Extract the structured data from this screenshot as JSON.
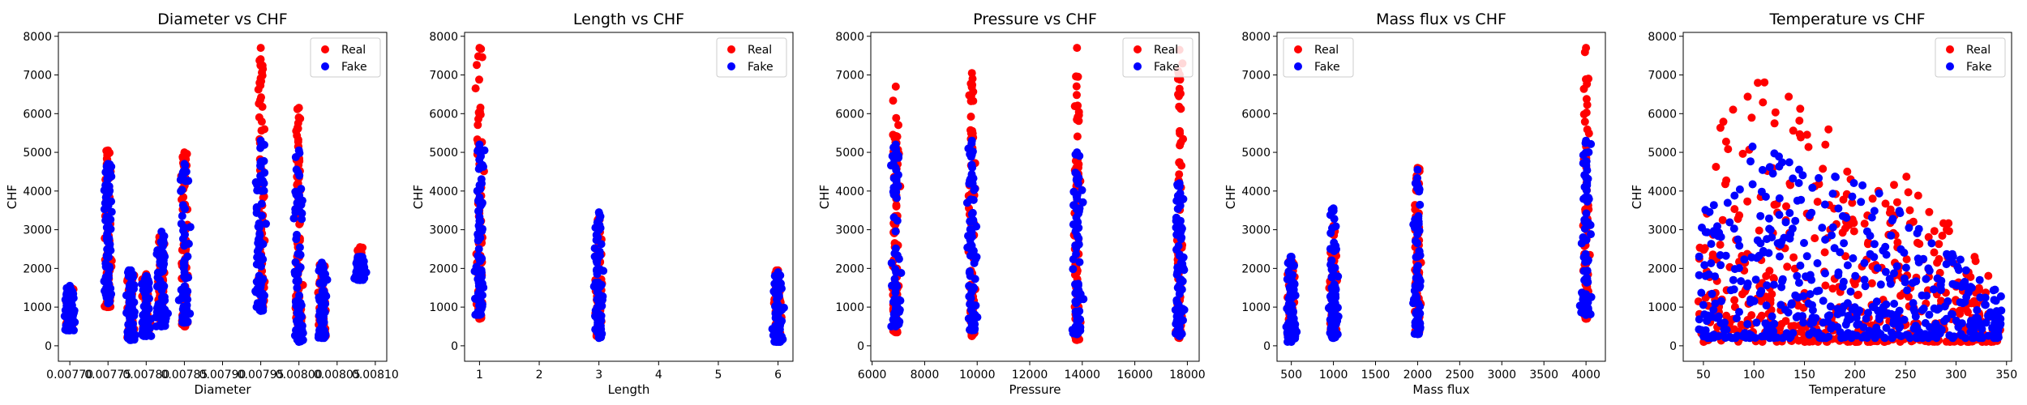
{
  "colors": {
    "real": "#ff0000",
    "fake": "#0000ff"
  },
  "legend": {
    "real": "Real",
    "fake": "Fake"
  },
  "chart_data": [
    {
      "type": "scatter",
      "title": "Diameter vs CHF",
      "xlabel": "Diameter",
      "ylabel": "CHF",
      "xlim": [
        0.007685,
        0.008115
      ],
      "ylim": [
        -400,
        8100
      ],
      "xticks": [
        0.0077,
        0.00775,
        0.0078,
        0.00785,
        0.0079,
        0.00795,
        0.008,
        0.00805,
        0.0081
      ],
      "xtick_labels": [
        "0.00770",
        "0.00775",
        "0.00780",
        "0.00785",
        "0.00790",
        "0.00795",
        "0.00800",
        "0.00805",
        "0.00810"
      ],
      "yticks": [
        0,
        1000,
        2000,
        3000,
        4000,
        5000,
        6000,
        7000,
        8000
      ],
      "legend_position": "top-right",
      "series": [
        {
          "name": "Real",
          "clusters": [
            {
              "x": 0.0077,
              "y": [
                450,
                1500
              ]
            },
            {
              "x": 0.00775,
              "y": [
                1000,
                5050
              ]
            },
            {
              "x": 0.00778,
              "y": [
                200,
                1900
              ]
            },
            {
              "x": 0.0078,
              "y": [
                300,
                1850
              ]
            },
            {
              "x": 0.00782,
              "y": [
                600,
                2850
              ]
            },
            {
              "x": 0.00785,
              "y": [
                500,
                5000
              ]
            },
            {
              "x": 0.00795,
              "y": [
                1000,
                7700
              ]
            },
            {
              "x": 0.008,
              "y": [
                200,
                6150
              ]
            },
            {
              "x": 0.00803,
              "y": [
                250,
                2100
              ]
            },
            {
              "x": 0.00808,
              "y": [
                1750,
                2550
              ]
            }
          ]
        },
        {
          "name": "Fake",
          "clusters": [
            {
              "x": 0.0077,
              "y": [
                400,
                1550
              ]
            },
            {
              "x": 0.00775,
              "y": [
                1100,
                4700
              ]
            },
            {
              "x": 0.00778,
              "y": [
                150,
                1950
              ]
            },
            {
              "x": 0.0078,
              "y": [
                250,
                1800
              ]
            },
            {
              "x": 0.00782,
              "y": [
                500,
                2950
              ]
            },
            {
              "x": 0.00785,
              "y": [
                600,
                4700
              ]
            },
            {
              "x": 0.00795,
              "y": [
                900,
                5300
              ]
            },
            {
              "x": 0.008,
              "y": [
                100,
                5050
              ]
            },
            {
              "x": 0.00803,
              "y": [
                200,
                2150
              ]
            },
            {
              "x": 0.00808,
              "y": [
                1700,
                2300
              ]
            }
          ]
        }
      ]
    },
    {
      "type": "scatter",
      "title": "Length vs CHF",
      "xlabel": "Length",
      "ylabel": "CHF",
      "xlim": [
        0.75,
        6.25
      ],
      "ylim": [
        -400,
        8100
      ],
      "xticks": [
        1,
        2,
        3,
        4,
        5,
        6
      ],
      "xtick_labels": [
        "1",
        "2",
        "3",
        "4",
        "5",
        "6"
      ],
      "yticks": [
        0,
        1000,
        2000,
        3000,
        4000,
        5000,
        6000,
        7000,
        8000
      ],
      "legend_position": "top-right",
      "series": [
        {
          "name": "Real",
          "clusters": [
            {
              "x": 1,
              "y": [
                700,
                7700
              ]
            },
            {
              "x": 3,
              "y": [
                250,
                3300
              ]
            },
            {
              "x": 6,
              "y": [
                150,
                1950
              ]
            }
          ]
        },
        {
          "name": "Fake",
          "clusters": [
            {
              "x": 1,
              "y": [
                800,
                5200
              ]
            },
            {
              "x": 3,
              "y": [
                200,
                3450
              ]
            },
            {
              "x": 6,
              "y": [
                100,
                1900
              ]
            }
          ]
        }
      ]
    },
    {
      "type": "scatter",
      "title": "Pressure vs CHF",
      "xlabel": "Pressure",
      "ylabel": "CHF",
      "xlim": [
        5950,
        18450
      ],
      "ylim": [
        -400,
        8100
      ],
      "xticks": [
        6000,
        8000,
        10000,
        12000,
        14000,
        16000,
        18000
      ],
      "xtick_labels": [
        "6000",
        "8000",
        "10000",
        "12000",
        "14000",
        "16000",
        "18000"
      ],
      "yticks": [
        0,
        1000,
        2000,
        3000,
        4000,
        5000,
        6000,
        7000,
        8000
      ],
      "legend_position": "top-right",
      "series": [
        {
          "name": "Real",
          "clusters": [
            {
              "x": 6900,
              "y": [
                350,
                6700
              ]
            },
            {
              "x": 9800,
              "y": [
                250,
                7050
              ]
            },
            {
              "x": 13800,
              "y": [
                150,
                7700
              ]
            },
            {
              "x": 17700,
              "y": [
                200,
                7650
              ]
            }
          ]
        },
        {
          "name": "Fake",
          "clusters": [
            {
              "x": 6900,
              "y": [
                500,
                5200
              ]
            },
            {
              "x": 9800,
              "y": [
                400,
                5300
              ]
            },
            {
              "x": 13800,
              "y": [
                300,
                5000
              ]
            },
            {
              "x": 17700,
              "y": [
                250,
                4200
              ]
            }
          ]
        }
      ]
    },
    {
      "type": "scatter",
      "title": "Mass flux vs CHF",
      "xlabel": "Mass flux",
      "ylabel": "CHF",
      "xlim": [
        330,
        4230
      ],
      "ylim": [
        -400,
        8100
      ],
      "xticks": [
        500,
        1000,
        1500,
        2000,
        2500,
        3000,
        3500,
        4000
      ],
      "xtick_labels": [
        "500",
        "1000",
        "1500",
        "2000",
        "2500",
        "3000",
        "3500",
        "4000"
      ],
      "yticks": [
        0,
        1000,
        2000,
        3000,
        4000,
        5000,
        6000,
        7000,
        8000
      ],
      "legend_position": "top-left",
      "series": [
        {
          "name": "Real",
          "clusters": [
            {
              "x": 500,
              "y": [
                150,
                2200
              ]
            },
            {
              "x": 1000,
              "y": [
                250,
                3100
              ]
            },
            {
              "x": 2000,
              "y": [
                350,
                4600
              ]
            },
            {
              "x": 4000,
              "y": [
                700,
                7700
              ]
            }
          ]
        },
        {
          "name": "Fake",
          "clusters": [
            {
              "x": 500,
              "y": [
                100,
                2300
              ]
            },
            {
              "x": 1000,
              "y": [
                200,
                3550
              ]
            },
            {
              "x": 2000,
              "y": [
                300,
                4550
              ]
            },
            {
              "x": 4000,
              "y": [
                800,
                5300
              ]
            }
          ]
        }
      ]
    },
    {
      "type": "scatter",
      "title": "Temperature vs CHF",
      "xlabel": "Temperature",
      "ylabel": "CHF",
      "xlim": [
        30,
        355
      ],
      "ylim": [
        -400,
        8100
      ],
      "xticks": [
        50,
        100,
        150,
        200,
        250,
        300,
        350
      ],
      "xtick_labels": [
        "50",
        "100",
        "150",
        "200",
        "250",
        "300",
        "350"
      ],
      "yticks": [
        0,
        1000,
        2000,
        3000,
        4000,
        5000,
        6000,
        7000,
        8000
      ],
      "legend_position": "top-right",
      "series": [
        {
          "name": "Real",
          "spread": {
            "x": [
              45,
              345
            ],
            "y_min": 100,
            "y_max_by_x": [
              [
                45,
                3300
              ],
              [
                80,
                7700
              ],
              [
                130,
                6500
              ],
              [
                200,
                5500
              ],
              [
                260,
                4300
              ],
              [
                345,
                1500
              ]
            ]
          }
        },
        {
          "name": "Fake",
          "spread": {
            "x": [
              45,
              345
            ],
            "y_min": 200,
            "y_max_by_x": [
              [
                45,
                3400
              ],
              [
                100,
                5200
              ],
              [
                150,
                4800
              ],
              [
                200,
                4400
              ],
              [
                260,
                3300
              ],
              [
                345,
                1300
              ]
            ]
          }
        }
      ]
    }
  ]
}
